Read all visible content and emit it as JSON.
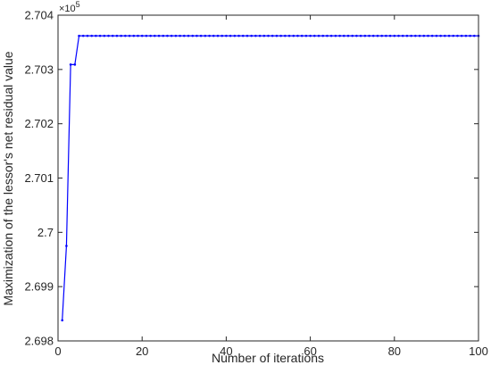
{
  "chart_data": {
    "type": "line",
    "title": "",
    "xlabel": "Number of iterations",
    "ylabel": "Maximization of the lessor's net residual value",
    "xlim": [
      0,
      100
    ],
    "ylim": [
      2.698,
      2.704
    ],
    "xticks": [
      0,
      20,
      40,
      60,
      80,
      100
    ],
    "xtick_labels": [
      "0",
      "20",
      "40",
      "60",
      "80",
      "100"
    ],
    "yticks": [
      2.698,
      2.699,
      2.7,
      2.701,
      2.702,
      2.703,
      2.704
    ],
    "ytick_labels": [
      "2.698",
      "2.699",
      "2.7",
      "2.701",
      "2.702",
      "2.703",
      "2.704"
    ],
    "y_multiplier_base": "×10",
    "y_multiplier_exponent": "5",
    "grid": false,
    "legend": "none",
    "line_color": "#0000ff",
    "marker": "dot",
    "series": [
      {
        "values_head": [
          [
            1,
            2.69838
          ],
          [
            2,
            2.69975
          ],
          [
            3,
            2.70309
          ],
          [
            4,
            2.70309
          ],
          [
            5,
            2.70362
          ]
        ],
        "plateau_value": 2.70362,
        "plateau_from": 5,
        "plateau_to": 100
      }
    ]
  }
}
